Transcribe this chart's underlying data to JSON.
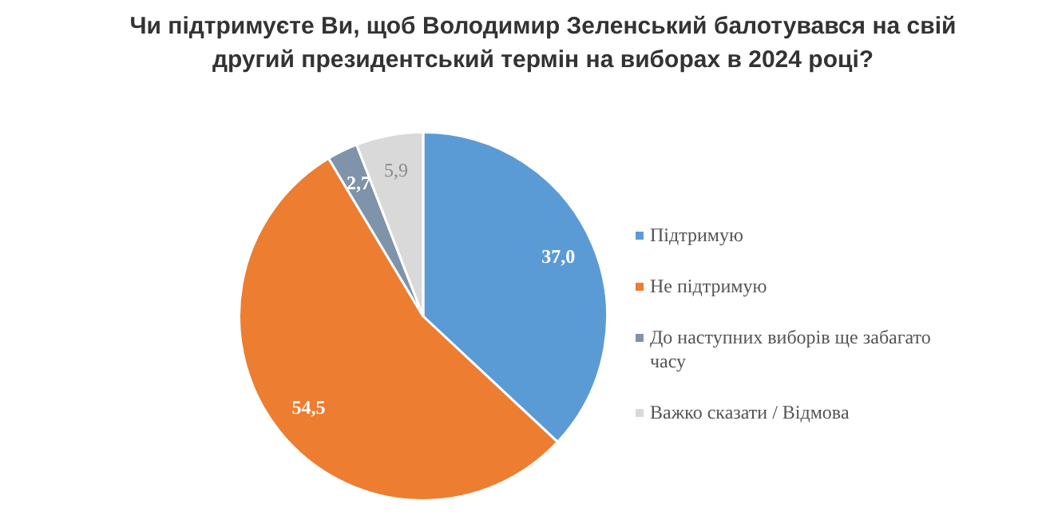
{
  "chart_data": {
    "type": "pie",
    "title": "Чи підтримуєте Ви, щоб Володимир Зеленський балотувався на свій другий президентський термін на виборах в 2024 році?",
    "categories": [
      "Підтримую",
      "Не підтримую",
      "До наступних виборів ще забагато часу",
      "Важко сказати / Відмова"
    ],
    "values": [
      37.0,
      54.5,
      2.7,
      5.9
    ],
    "value_labels": [
      "37,0",
      "54,5",
      "2,7",
      "5,9"
    ],
    "colors": [
      "#5b9bd5",
      "#ed7d31",
      "#7f93ab",
      "#d9d9d9"
    ],
    "legend": "right"
  }
}
